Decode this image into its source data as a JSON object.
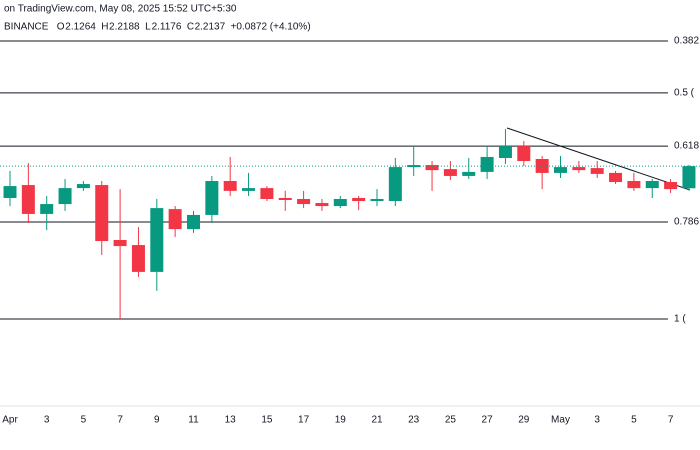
{
  "chart_data": {
    "type": "candlestick",
    "title": "on TradingView.com, May 08, 2025 15:52 UTC+5:30",
    "exchange": "BINANCE",
    "ohlc": [
      {
        "label": "O",
        "value": 2.1264
      },
      {
        "label": "H",
        "value": 2.2188
      },
      {
        "label": "L",
        "value": 2.1176
      },
      {
        "label": "C",
        "value": 2.2137
      }
    ],
    "change": "+0.0872 (+4.10%)",
    "categories": [
      "Apr",
      null,
      "3",
      null,
      "5",
      null,
      "7",
      null,
      "9",
      null,
      "11",
      null,
      "13",
      null,
      "15",
      null,
      "17",
      null,
      "19",
      null,
      "21",
      null,
      "23",
      null,
      "25",
      null,
      "27",
      null,
      "29",
      null,
      "May",
      null,
      "3",
      null,
      "5",
      null,
      "7",
      null
    ],
    "open": [
      2.088,
      2.139,
      2.025,
      2.064,
      2.127,
      2.139,
      1.922,
      1.902,
      1.796,
      2.044,
      1.965,
      2.021,
      2.155,
      2.116,
      2.127,
      2.088,
      2.084,
      2.068,
      2.056,
      2.088,
      2.076,
      2.076,
      2.21,
      2.218,
      2.202,
      2.175,
      2.191,
      2.246,
      2.293,
      2.242,
      2.187,
      2.21,
      2.206,
      2.187,
      2.155,
      2.127,
      2.151,
      2.1264
    ],
    "high": [
      2.195,
      2.226,
      2.096,
      2.163,
      2.155,
      2.155,
      2.123,
      1.973,
      2.084,
      2.056,
      2.037,
      2.175,
      2.25,
      2.187,
      2.135,
      2.116,
      2.116,
      2.084,
      2.096,
      2.096,
      2.123,
      2.246,
      2.293,
      2.234,
      2.234,
      2.246,
      2.293,
      2.36,
      2.313,
      2.254,
      2.254,
      2.234,
      2.234,
      2.195,
      2.187,
      2.163,
      2.163,
      2.2188
    ],
    "low": [
      2.056,
      1.989,
      1.961,
      2.037,
      2.116,
      1.863,
      1.61,
      1.776,
      1.721,
      1.934,
      1.95,
      1.989,
      2.096,
      2.096,
      2.076,
      2.037,
      2.048,
      2.037,
      2.048,
      2.04,
      2.056,
      2.056,
      2.175,
      2.116,
      2.159,
      2.163,
      2.163,
      2.222,
      2.214,
      2.123,
      2.167,
      2.187,
      2.167,
      2.143,
      2.116,
      2.088,
      2.108,
      2.1176
    ],
    "close": [
      2.135,
      2.025,
      2.064,
      2.127,
      2.143,
      1.918,
      1.898,
      1.796,
      2.048,
      1.965,
      2.021,
      2.155,
      2.116,
      2.127,
      2.084,
      2.08,
      2.064,
      2.056,
      2.084,
      2.076,
      2.084,
      2.21,
      2.218,
      2.198,
      2.175,
      2.191,
      2.25,
      2.293,
      2.234,
      2.187,
      2.21,
      2.198,
      2.183,
      2.151,
      2.127,
      2.155,
      2.123,
      2.2137
    ],
    "up_color": "#089981",
    "down_color": "#f23645",
    "ylim": [
      1.29,
      2.87
    ],
    "levels": [
      {
        "label": "0.382 (",
        "value": 2.708
      },
      {
        "label": "0.5 (",
        "value": 2.503
      },
      {
        "label": "0.618 (",
        "value": 2.293
      },
      {
        "label": "0.786 (",
        "value": 1.993
      },
      {
        "label": "1 (",
        "value": 1.61
      }
    ]
  }
}
